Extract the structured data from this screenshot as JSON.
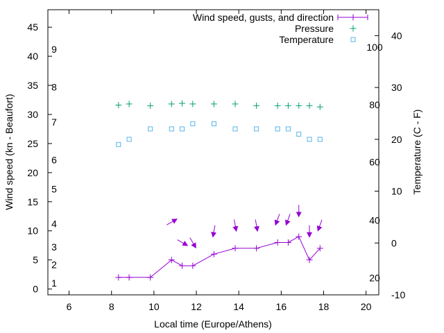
{
  "chart_data": {
    "type": "line",
    "xlabel": "Local time (Europe/Athens)",
    "ylabel_left": "Wind speed (kn - Beaufort)",
    "ylabel_right": "Temperature (C - F)",
    "xlim": [
      5,
      20.6
    ],
    "ylim_left": [
      -1,
      48
    ],
    "ylim_right": [
      -10,
      45
    ],
    "x_ticks": [
      6,
      8,
      10,
      12,
      14,
      16,
      18,
      20
    ],
    "y_left_ticks": [
      0,
      5,
      10,
      15,
      20,
      25,
      30,
      35,
      40,
      45
    ],
    "y_right_ticks": [
      -10,
      0,
      10,
      20,
      30,
      40
    ],
    "beaufort_labels": [
      {
        "label": "1",
        "kn": 1
      },
      {
        "label": "2",
        "kn": 4.2
      },
      {
        "label": "3",
        "kn": 7.2
      },
      {
        "label": "4",
        "kn": 11.2
      },
      {
        "label": "5",
        "kn": 17.2
      },
      {
        "label": "6",
        "kn": 22.2
      },
      {
        "label": "7",
        "kn": 28.7
      },
      {
        "label": "8",
        "kn": 34.7
      },
      {
        "label": "9",
        "kn": 41.2
      }
    ],
    "fahrenheit_labels": [
      {
        "label": "20",
        "c": -6.7
      },
      {
        "label": "40",
        "c": 4.4
      },
      {
        "label": "60",
        "c": 15.6
      },
      {
        "label": "80",
        "c": 26.7
      },
      {
        "label": "100",
        "c": 37.8
      }
    ],
    "legend": {
      "position": "top-right",
      "entries": [
        "Wind speed, gusts, and direction",
        "Pressure",
        "Temperature"
      ]
    },
    "colors": {
      "wind": "#9400d3",
      "pressure": "#009e73",
      "temperature": "#56b4e9"
    },
    "series": [
      {
        "name": "Wind speed, gusts, and direction",
        "axis": "left",
        "style": "linespoints",
        "x": [
          8.33,
          8.83,
          9.83,
          10.83,
          11.33,
          11.83,
          12.83,
          13.83,
          14.83,
          15.83,
          16.33,
          16.83,
          17.33,
          17.83
        ],
        "values": [
          2,
          2,
          2,
          5,
          4,
          4,
          6,
          7,
          7,
          8,
          8,
          9,
          5,
          7
        ]
      },
      {
        "name": "Wind direction arrows",
        "axis": "left",
        "style": "vectors",
        "x": [
          10.83,
          11.33,
          11.83,
          12.83,
          13.83,
          14.83,
          15.83,
          16.33,
          16.83,
          17.33,
          17.83
        ],
        "y": [
          11.5,
          8.0,
          8.0,
          10.0,
          11.0,
          11.0,
          12.0,
          12.0,
          13.5,
          10.0,
          11.0
        ],
        "direction_from_deg": [
          240,
          300,
          330,
          10,
          350,
          350,
          20,
          20,
          0,
          0,
          20
        ]
      },
      {
        "name": "Pressure",
        "axis": "left",
        "style": "points",
        "x": [
          8.33,
          8.83,
          9.83,
          10.83,
          11.33,
          11.83,
          12.83,
          13.83,
          14.83,
          15.83,
          16.33,
          16.83,
          17.33,
          17.83
        ],
        "values": [
          31.6,
          31.8,
          31.5,
          31.8,
          31.9,
          31.8,
          31.8,
          31.8,
          31.5,
          31.5,
          31.5,
          31.5,
          31.5,
          31.3
        ]
      },
      {
        "name": "Temperature",
        "axis": "right",
        "style": "points",
        "x": [
          8.33,
          8.83,
          9.83,
          10.83,
          11.33,
          11.83,
          12.83,
          13.83,
          14.83,
          15.83,
          16.33,
          16.83,
          17.33,
          17.83
        ],
        "values": [
          19,
          20,
          22,
          22,
          22,
          23,
          23,
          22,
          22,
          22,
          22,
          21,
          20,
          20
        ]
      }
    ]
  }
}
